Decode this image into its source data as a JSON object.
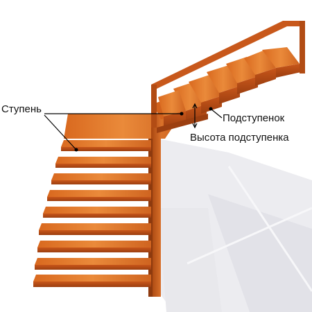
{
  "labels": {
    "step": "Ступень",
    "riser": "Подступенок",
    "riser_height": "Высота подступенка"
  },
  "colors": {
    "wood_light": "#e07a2c",
    "wood_mid": "#c45a1a",
    "wood_dark": "#8e3a0e",
    "shadow": "#e6e6ea",
    "pointer": "#000000"
  }
}
